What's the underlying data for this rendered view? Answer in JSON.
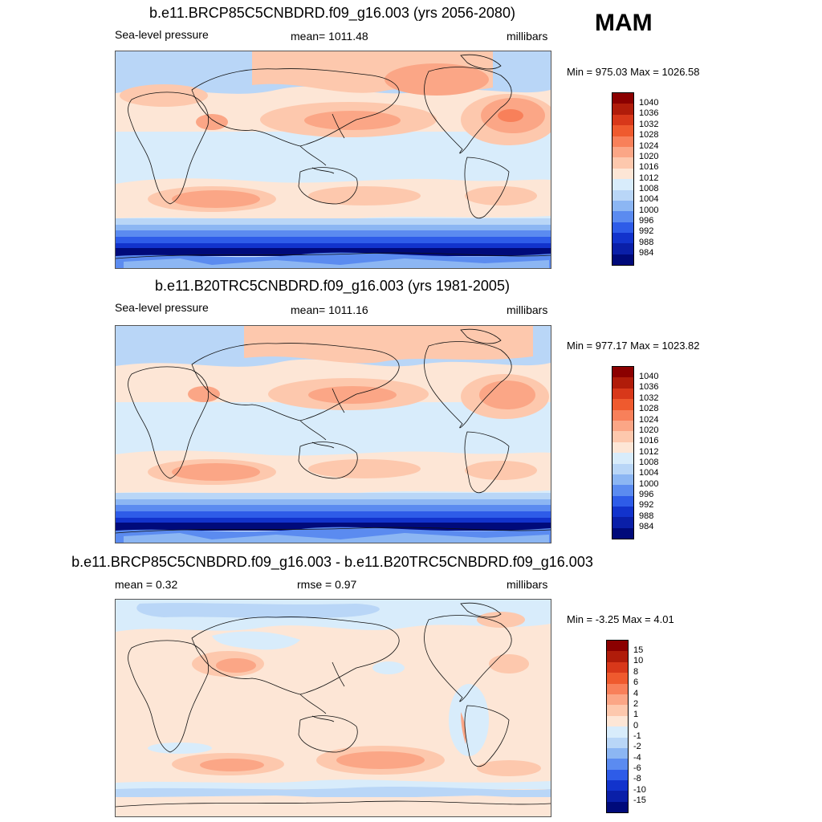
{
  "season": "MAM",
  "panels": [
    {
      "title": "b.e11.BRCP85C5CNBDRD.f09_g16.003 (yrs 2056-2080)",
      "left_label": "Sea-level pressure",
      "center_label": "mean= 1011.48",
      "right_label": "millibars",
      "minmax": "Min = 975.03 Max = 1026.58",
      "colorbar": {
        "labels": [
          "1040",
          "1036",
          "1032",
          "1028",
          "1024",
          "1020",
          "1016",
          "1012",
          "1008",
          "1004",
          "1000",
          "996",
          "992",
          "988",
          "984"
        ],
        "colors": [
          "#8b0000",
          "#b01c0a",
          "#d8381a",
          "#ef5a2e",
          "#f8805a",
          "#fba686",
          "#fdc8ad",
          "#fde6d6",
          "#d8ecfb",
          "#b9d6f7",
          "#8cb6f3",
          "#5b8bf0",
          "#2e5ce8",
          "#1233cc",
          "#0a1fa8",
          "#000a7a"
        ]
      }
    },
    {
      "title": "b.e11.B20TRC5CNBDRD.f09_g16.003 (yrs 1981-2005)",
      "left_label": "Sea-level pressure",
      "center_label": "mean= 1011.16",
      "right_label": "millibars",
      "minmax": "Min = 977.17 Max = 1023.82",
      "colorbar": {
        "labels": [
          "1040",
          "1036",
          "1032",
          "1028",
          "1024",
          "1020",
          "1016",
          "1012",
          "1008",
          "1004",
          "1000",
          "996",
          "992",
          "988",
          "984"
        ],
        "colors": [
          "#8b0000",
          "#b01c0a",
          "#d8381a",
          "#ef5a2e",
          "#f8805a",
          "#fba686",
          "#fdc8ad",
          "#fde6d6",
          "#d8ecfb",
          "#b9d6f7",
          "#8cb6f3",
          "#5b8bf0",
          "#2e5ce8",
          "#1233cc",
          "#0a1fa8",
          "#000a7a"
        ]
      }
    },
    {
      "title": "b.e11.BRCP85C5CNBDRD.f09_g16.003 - b.e11.B20TRC5CNBDRD.f09_g16.003",
      "left_label": "mean =   0.32",
      "center_label": "rmse =   0.97",
      "right_label": "millibars",
      "minmax": "Min =  -3.25 Max =   4.01",
      "colorbar": {
        "labels": [
          "15",
          "10",
          "8",
          "6",
          "4",
          "2",
          "1",
          "0",
          "-1",
          "-2",
          "-4",
          "-6",
          "-8",
          "-10",
          "-15"
        ],
        "colors": [
          "#8b0000",
          "#b01c0a",
          "#d8381a",
          "#ef5a2e",
          "#f8805a",
          "#fba686",
          "#fdc8ad",
          "#fde6d6",
          "#d8ecfb",
          "#b9d6f7",
          "#8cb6f3",
          "#5b8bf0",
          "#2e5ce8",
          "#1233cc",
          "#0a1fa8",
          "#000a7a"
        ]
      }
    }
  ]
}
